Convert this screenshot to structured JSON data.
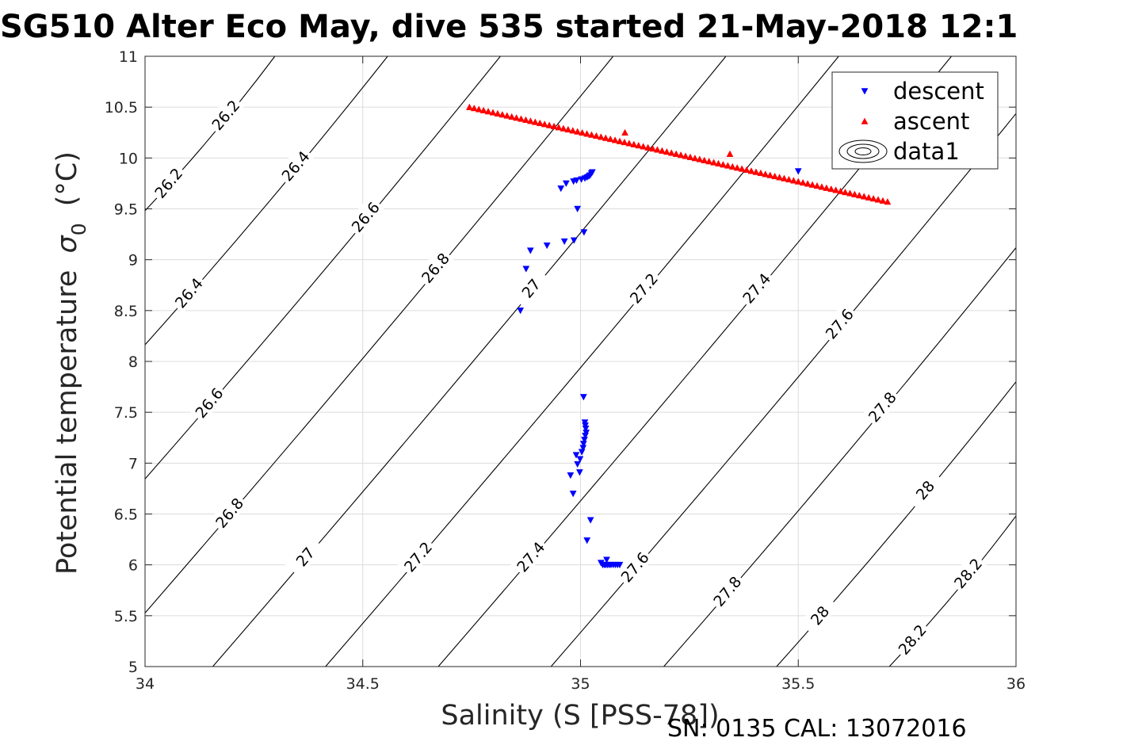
{
  "title": "SG510 Alter Eco May, dive 535 started 21-May-2018 12:1",
  "footer": "SN: 0135  CAL: 13072016",
  "chart_data": {
    "type": "scatter",
    "xlabel": "Salinity (S [PSS-78])",
    "ylabel_main": "Potential temperature",
    "ylabel_sigma": "σ",
    "ylabel_sub": "0",
    "ylabel_unit": "(°C)",
    "xlim": [
      34,
      36
    ],
    "ylim": [
      5,
      11
    ],
    "xticks": [
      34,
      34.5,
      35,
      35.5,
      36
    ],
    "xtick_labels": [
      "34",
      "34.5",
      "35",
      "35.5",
      "36"
    ],
    "yticks": [
      5,
      5.5,
      6,
      6.5,
      7,
      7.5,
      8,
      8.5,
      9,
      9.5,
      10,
      10.5,
      11
    ],
    "ytick_labels": [
      "5",
      "5.5",
      "6",
      "6.5",
      "7",
      "7.5",
      "8",
      "8.5",
      "9",
      "9.5",
      "10",
      "10.5",
      "11"
    ],
    "grid": true,
    "legend_position": "top-right",
    "series": [
      {
        "name": "descent",
        "marker": "triangle-down",
        "color": "#0000ff",
        "x": [
          34.862,
          34.875,
          34.885,
          34.923,
          34.955,
          34.967,
          34.984,
          34.991,
          35.002,
          35.01,
          35.015,
          35.019,
          35.022,
          35.025,
          35.027,
          34.963,
          34.985,
          34.993,
          35.008,
          34.99,
          35.007,
          35.01,
          35.011,
          35.012,
          35.013,
          35.011,
          35.009,
          35.007,
          35.006,
          35.003,
          34.999,
          34.993,
          34.998,
          34.977,
          34.983,
          35.015,
          35.023,
          35.047,
          35.051,
          35.055,
          35.058,
          35.062,
          35.066,
          35.07,
          35.075,
          35.08,
          35.085,
          35.09,
          35.06
        ],
        "y": [
          8.5,
          8.91,
          9.09,
          9.14,
          9.7,
          9.75,
          9.77,
          9.78,
          9.79,
          9.8,
          9.81,
          9.82,
          9.83,
          9.85,
          9.86,
          9.18,
          9.19,
          9.5,
          9.27,
          7.08,
          7.65,
          7.4,
          7.37,
          7.34,
          7.3,
          7.27,
          7.23,
          7.19,
          7.15,
          7.11,
          7.04,
          6.99,
          6.91,
          6.88,
          6.7,
          6.24,
          6.44,
          6.02,
          6.0,
          6.0,
          6.0,
          6.0,
          6.0,
          6.0,
          6.0,
          6.0,
          6.0,
          6.0,
          6.05
        ]
      },
      {
        "name": "ascent",
        "marker": "triangle-up",
        "color": "#ff0000",
        "x_start": 34.745,
        "x_end": 35.705,
        "y_start": 10.5,
        "y_end": 9.57,
        "count": 90,
        "outliers_x": [
          35.102,
          35.343
        ],
        "outliers_y": [
          10.25,
          10.04
        ]
      },
      {
        "name": "data1",
        "marker": "contour-ellipses",
        "color": "#000000"
      },
      {
        "name": "",
        "marker": "none",
        "color": "#000000",
        "isopycnals": [
          {
            "sigma": 26.2,
            "label": "26.2"
          },
          {
            "sigma": 26.4,
            "label": "26.4"
          },
          {
            "sigma": 26.6,
            "label": "26.6"
          },
          {
            "sigma": 26.8,
            "label": "26.8"
          },
          {
            "sigma": 27.0,
            "label": "27"
          },
          {
            "sigma": 27.2,
            "label": "27.2"
          },
          {
            "sigma": 27.4,
            "label": "27.4"
          },
          {
            "sigma": 27.6,
            "label": "27.6"
          },
          {
            "sigma": 27.8,
            "label": "27.8"
          },
          {
            "sigma": 28.0,
            "label": "28"
          },
          {
            "sigma": 28.2,
            "label": "28.2"
          }
        ]
      }
    ]
  }
}
